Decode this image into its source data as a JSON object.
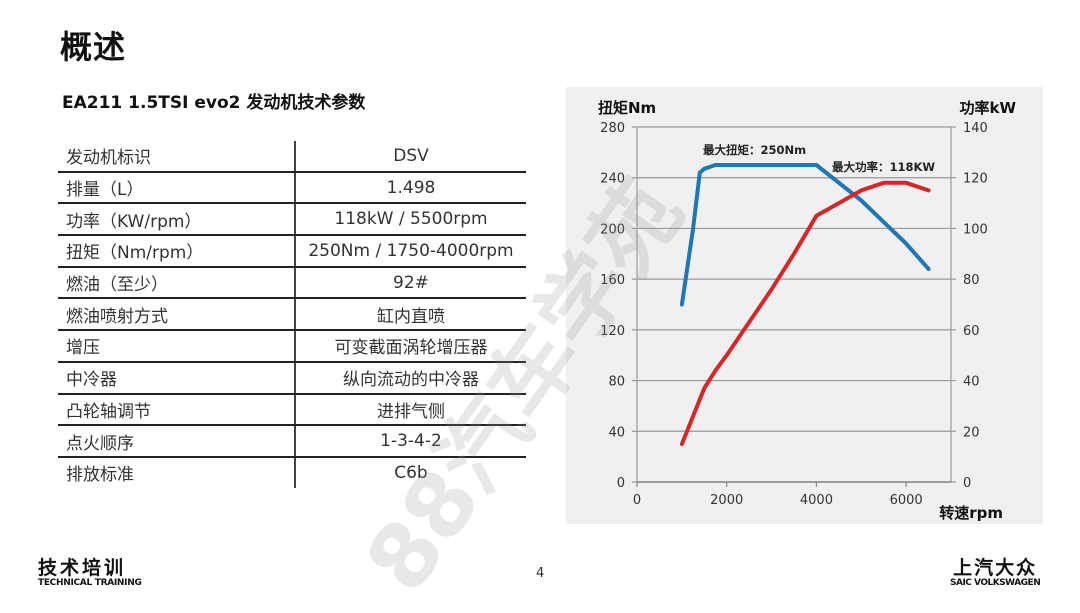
{
  "page": {
    "title": "概述",
    "subtitle": "EA211 1.5TSI evo2 发动机技术参数",
    "page_number": "4",
    "watermark": "88汽车学苑"
  },
  "spec_table": {
    "rows": [
      {
        "key": "发动机标识",
        "value": "DSV"
      },
      {
        "key": "排量（L）",
        "value": "1.498"
      },
      {
        "key": "功率（KW/rpm）",
        "value": "118kW / 5500rpm"
      },
      {
        "key": "扭矩（Nm/rpm）",
        "value": "250Nm / 1750-4000rpm"
      },
      {
        "key": "燃油（至少）",
        "value": "92#"
      },
      {
        "key": "燃油喷射方式",
        "value": "缸内直喷"
      },
      {
        "key": "增压",
        "value": "可变截面涡轮增压器"
      },
      {
        "key": "中冷器",
        "value": "纵向流动的中冷器"
      },
      {
        "key": "凸轮轴调节",
        "value": "进排气侧"
      },
      {
        "key": "点火顺序",
        "value": "1-3-4-2"
      },
      {
        "key": "排放标准",
        "value": "C6b"
      }
    ]
  },
  "footer": {
    "left_cn": "技术培训",
    "left_en": "TECHNICAL TRAINING",
    "right_cn": "上汽大众",
    "right_en": "SAIC VOLKSWAGEN"
  },
  "colors": {
    "torque": "#1f77b4",
    "power": "#d62728",
    "panel_bg": "#f0f0f0",
    "grid": "#999999"
  },
  "chart_data": {
    "type": "line",
    "title": "",
    "xlabel": "转速rpm",
    "ylabel": "扭矩Nm",
    "y2label": "功率kW",
    "xlim": [
      0,
      7000
    ],
    "ylim": [
      0,
      280
    ],
    "y2lim": [
      0,
      140
    ],
    "x_ticks": [
      "0",
      "2000",
      "4000",
      "6000"
    ],
    "y_ticks": [
      "0",
      "40",
      "80",
      "120",
      "160",
      "200",
      "240",
      "280"
    ],
    "y2_ticks": [
      "0",
      "20",
      "40",
      "60",
      "80",
      "100",
      "120",
      "140"
    ],
    "grid": true,
    "annotations": [
      {
        "text": "最大扭矩：250Nm",
        "x": 2600,
        "y": 262
      },
      {
        "text": "最大功率：118KW",
        "x": 5200,
        "y": 250
      }
    ],
    "series": [
      {
        "name": "扭矩Nm",
        "axis": "left",
        "x": [
          1000,
          1250,
          1400,
          1500,
          1750,
          4000,
          5000,
          5500,
          6000,
          6500
        ],
        "values": [
          140,
          200,
          244,
          247,
          250,
          250,
          222,
          205,
          188,
          168
        ]
      },
      {
        "name": "功率kW",
        "axis": "right",
        "x": [
          1000,
          1250,
          1500,
          1750,
          2000,
          2500,
          3000,
          3500,
          4000,
          4500,
          5000,
          5500,
          6000,
          6500
        ],
        "values": [
          15,
          26,
          37,
          44,
          50,
          63,
          76,
          90,
          105,
          110,
          115,
          118,
          118,
          115
        ]
      }
    ]
  }
}
